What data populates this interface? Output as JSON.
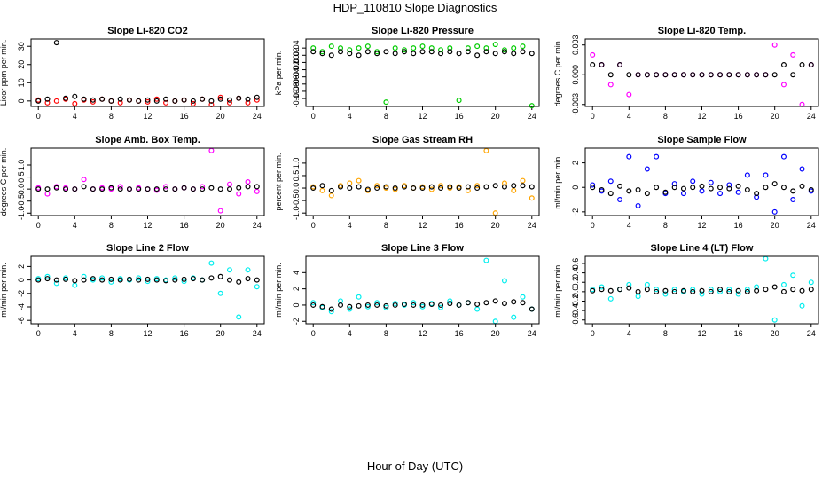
{
  "title": "HDP_110810  Slope Diagnostics",
  "xlabel": "Hour of Day (UTC)",
  "chart_data": [
    {
      "type": "scatter",
      "title": "Slope Li-820 CO2",
      "ylabel": "Licor ppm per min.",
      "xlim": [
        -0.8,
        24.8
      ],
      "xticks": [
        0,
        4,
        8,
        12,
        16,
        20,
        24
      ],
      "ylim": [
        -3,
        34
      ],
      "yticks": [
        0,
        10,
        20,
        30
      ],
      "x": [
        0,
        1,
        2,
        3,
        4,
        5,
        6,
        7,
        8,
        9,
        10,
        11,
        12,
        13,
        14,
        15,
        16,
        17,
        18,
        19,
        20,
        21,
        22,
        23,
        24
      ],
      "series": [
        {
          "color": "#ff0000",
          "values": [
            0.5,
            -1,
            0,
            1,
            -1.5,
            0.5,
            -0.5,
            1,
            0,
            -1,
            0.5,
            0,
            -0.5,
            1,
            -1,
            0,
            0.5,
            -1.5,
            1,
            -2,
            2,
            -1,
            1.5,
            -1,
            0.5
          ]
        },
        {
          "color": "#000000",
          "values": [
            0,
            1,
            32,
            1.5,
            2.5,
            1,
            0.5,
            1,
            0,
            1,
            0.5,
            0,
            0.5,
            0,
            1,
            0,
            0.5,
            0,
            1,
            0,
            1,
            0.5,
            1.5,
            1,
            2
          ]
        }
      ]
    },
    {
      "type": "scatter",
      "title": "Slope Li-820 Pressure",
      "ylabel": "kPa per min.",
      "xlim": [
        -0.8,
        24.8
      ],
      "xticks": [
        0,
        4,
        8,
        12,
        16,
        20,
        24
      ],
      "ylim": [
        -0.122,
        0.065
      ],
      "yticks": [
        {
          "value": -0.1,
          "label": "-0.10"
        },
        {
          "value": -0.08,
          "label": "-0.08"
        },
        {
          "value": -0.06,
          "label": "-0.06"
        },
        {
          "value": -0.04,
          "label": "-0.04"
        },
        {
          "value": -0.02,
          "label": "-0.02"
        },
        {
          "value": 0,
          "label": "0.00"
        },
        {
          "value": 0.02,
          "label": "0.02"
        },
        {
          "value": 0.04,
          "label": "0.04"
        }
      ],
      "x": [
        0,
        1,
        2,
        3,
        4,
        5,
        6,
        7,
        8,
        9,
        10,
        11,
        12,
        13,
        14,
        15,
        16,
        17,
        18,
        19,
        20,
        21,
        22,
        23,
        24
      ],
      "series": [
        {
          "color": "#00cc00",
          "values": [
            0.04,
            0.03,
            0.045,
            0.04,
            0.035,
            0.04,
            0.045,
            0.03,
            -0.11,
            0.04,
            0.035,
            0.04,
            0.045,
            0.04,
            0.035,
            0.04,
            -0.105,
            0.04,
            0.045,
            0.04,
            0.05,
            0.035,
            0.04,
            0.045,
            -0.12
          ]
        },
        {
          "color": "#000000",
          "values": [
            0.03,
            0.025,
            0.02,
            0.03,
            0.025,
            0.02,
            0.03,
            0.025,
            0.03,
            0.025,
            0.03,
            0.025,
            0.03,
            0.03,
            0.025,
            0.03,
            0.025,
            0.03,
            0.02,
            0.03,
            0.025,
            0.03,
            0.025,
            0.03,
            0.025
          ]
        }
      ]
    },
    {
      "type": "scatter",
      "title": "Slope Li-820 Temp.",
      "ylabel": "degrees C per min.",
      "xlim": [
        -0.8,
        24.8
      ],
      "xticks": [
        0,
        4,
        8,
        12,
        16,
        20,
        24
      ],
      "ylim": [
        -0.0032,
        0.0036
      ],
      "yticks": [
        {
          "value": -0.003,
          "label": "-0.003"
        },
        {
          "value": 0,
          "label": "0.000"
        },
        {
          "value": 0.003,
          "label": "0.003"
        }
      ],
      "x": [
        0,
        1,
        2,
        3,
        4,
        5,
        6,
        7,
        8,
        9,
        10,
        11,
        12,
        13,
        14,
        15,
        16,
        17,
        18,
        19,
        20,
        21,
        22,
        23,
        24
      ],
      "series": [
        {
          "color": "#ff00ff",
          "values": [
            0.002,
            0.001,
            -0.001,
            0.001,
            -0.002,
            0,
            0,
            0,
            0,
            0,
            0,
            0,
            0,
            0,
            0,
            0,
            0,
            0,
            0,
            0,
            0.003,
            -0.001,
            0.002,
            -0.003,
            0.001
          ]
        },
        {
          "color": "#000000",
          "values": [
            0.001,
            0.001,
            0,
            0.001,
            0,
            0,
            0,
            0,
            0,
            0,
            0,
            0,
            0,
            0,
            0,
            0,
            0,
            0,
            0,
            0,
            0,
            0.001,
            0,
            0.001,
            0.001
          ]
        }
      ]
    },
    {
      "type": "scatter",
      "title": "Slope Amb. Box Temp.",
      "ylabel": "degrees C per min.",
      "xlim": [
        -0.8,
        24.8
      ],
      "xticks": [
        0,
        4,
        8,
        12,
        16,
        20,
        24
      ],
      "ylim": [
        -1.1,
        1.7
      ],
      "yticks": [
        {
          "value": -1,
          "label": "-1.0"
        },
        {
          "value": -0.5,
          "label": "-0.5"
        },
        {
          "value": 0,
          "label": "0.0"
        },
        {
          "value": 0.5,
          "label": "0.5"
        },
        {
          "value": 1,
          "label": "1.0"
        }
      ],
      "x": [
        0,
        1,
        2,
        3,
        4,
        5,
        6,
        7,
        8,
        9,
        10,
        11,
        12,
        13,
        14,
        15,
        16,
        17,
        18,
        19,
        20,
        21,
        22,
        23,
        24
      ],
      "series": [
        {
          "color": "#ff00ff",
          "values": [
            0.05,
            -0.2,
            0.1,
            0.05,
            0,
            0.4,
            0,
            0.05,
            0,
            0.1,
            0,
            0.05,
            0,
            -0.05,
            0.1,
            0,
            0.05,
            0,
            0.1,
            1.6,
            -0.9,
            0.2,
            -0.2,
            0.3,
            -0.1
          ]
        },
        {
          "color": "#000000",
          "values": [
            0,
            0,
            0.05,
            0,
            0,
            0.1,
            0,
            0,
            0.05,
            0,
            0,
            0,
            0,
            0,
            0,
            0,
            0.05,
            0,
            0,
            0.05,
            0,
            0,
            0.05,
            0.1,
            0.1
          ]
        }
      ]
    },
    {
      "type": "scatter",
      "title": "Slope Gas Stream RH",
      "ylabel": "percent per min.",
      "xlim": [
        -0.8,
        24.8
      ],
      "xticks": [
        0,
        4,
        8,
        12,
        16,
        20,
        24
      ],
      "ylim": [
        -1.1,
        1.6
      ],
      "yticks": [
        {
          "value": -1,
          "label": "-1.0"
        },
        {
          "value": -0.5,
          "label": "-0.5"
        },
        {
          "value": 0,
          "label": "0.0"
        },
        {
          "value": 0.5,
          "label": "0.5"
        },
        {
          "value": 1,
          "label": "1.0"
        }
      ],
      "x": [
        0,
        1,
        2,
        3,
        4,
        5,
        6,
        7,
        8,
        9,
        10,
        11,
        12,
        13,
        14,
        15,
        16,
        17,
        18,
        19,
        20,
        21,
        22,
        23,
        24
      ],
      "series": [
        {
          "color": "#ffa500",
          "values": [
            0.05,
            -0.1,
            -0.3,
            0.1,
            0.2,
            0.3,
            -0.1,
            0.1,
            0,
            -0.05,
            0.1,
            0,
            0.05,
            -0.05,
            0.1,
            0,
            0.05,
            -0.1,
            0.1,
            1.5,
            -1,
            0.2,
            -0.1,
            0.3,
            -0.4
          ]
        },
        {
          "color": "#000000",
          "values": [
            0,
            0.1,
            -0.1,
            0.05,
            0,
            0.05,
            -0.05,
            0,
            0.05,
            0,
            0.05,
            0,
            0,
            0.05,
            0,
            0.05,
            0,
            0.05,
            0,
            0.05,
            0.1,
            0.05,
            0.1,
            0.1,
            0.05
          ]
        }
      ]
    },
    {
      "type": "scatter",
      "title": "Slope Sample Flow",
      "ylabel": "ml/min per min.",
      "xlim": [
        -0.8,
        24.8
      ],
      "xticks": [
        0,
        4,
        8,
        12,
        16,
        20,
        24
      ],
      "ylim": [
        -2.3,
        3.2
      ],
      "yticks": [
        -2,
        0,
        2
      ],
      "x": [
        0,
        1,
        2,
        3,
        4,
        5,
        6,
        7,
        8,
        9,
        10,
        11,
        12,
        13,
        14,
        15,
        16,
        17,
        18,
        19,
        20,
        21,
        22,
        23,
        24
      ],
      "series": [
        {
          "color": "#0000ff",
          "values": [
            0.2,
            -0.3,
            0.5,
            -1,
            2.5,
            -1.5,
            1.5,
            2.5,
            -0.5,
            0.3,
            -0.5,
            0.5,
            -0.3,
            0.4,
            -0.5,
            0.2,
            -0.4,
            1,
            -0.8,
            1,
            -2,
            2.5,
            -1,
            1.5,
            -0.3
          ]
        },
        {
          "color": "#000000",
          "values": [
            0,
            -0.2,
            -0.5,
            0.1,
            -0.3,
            -0.2,
            -0.5,
            0,
            -0.4,
            0,
            -0.1,
            0,
            0.1,
            -0.1,
            0,
            -0.1,
            0.1,
            -0.2,
            -0.5,
            0,
            0.3,
            0,
            -0.3,
            0.1,
            -0.2
          ]
        }
      ]
    },
    {
      "type": "scatter",
      "title": "Slope Line 2 Flow",
      "ylabel": "ml/min per min.",
      "xlim": [
        -0.8,
        24.8
      ],
      "xticks": [
        0,
        4,
        8,
        12,
        16,
        20,
        24
      ],
      "ylim": [
        -6.5,
        3.5
      ],
      "yticks": [
        -6,
        -4,
        -2,
        0,
        2
      ],
      "x": [
        0,
        1,
        2,
        3,
        4,
        5,
        6,
        7,
        8,
        9,
        10,
        11,
        12,
        13,
        14,
        15,
        16,
        17,
        18,
        19,
        20,
        21,
        22,
        23,
        24
      ],
      "series": [
        {
          "color": "#00eeee",
          "values": [
            0.2,
            0.5,
            -0.5,
            0.3,
            -0.8,
            0.5,
            0,
            0.3,
            -0.3,
            0.2,
            0,
            0.3,
            -0.2,
            0.2,
            0,
            0.3,
            -0.2,
            0.3,
            0,
            2.5,
            -2,
            1.5,
            -5.5,
            1.5,
            -1
          ]
        },
        {
          "color": "#000000",
          "values": [
            0,
            0.2,
            0,
            0.1,
            -0.1,
            0,
            0.2,
            0,
            0.1,
            0,
            0.1,
            0,
            0.1,
            0,
            -0.1,
            0,
            0.1,
            0.2,
            0,
            0.3,
            0.5,
            0,
            -0.3,
            0.2,
            0
          ]
        }
      ]
    },
    {
      "type": "scatter",
      "title": "Slope Line 3 Flow",
      "ylabel": "ml/min per min.",
      "xlim": [
        -0.8,
        24.8
      ],
      "xticks": [
        0,
        4,
        8,
        12,
        16,
        20,
        24
      ],
      "ylim": [
        -2.3,
        6
      ],
      "yticks": [
        -2,
        0,
        2,
        4
      ],
      "x": [
        0,
        1,
        2,
        3,
        4,
        5,
        6,
        7,
        8,
        9,
        10,
        11,
        12,
        13,
        14,
        15,
        16,
        17,
        18,
        19,
        20,
        21,
        22,
        23,
        24
      ],
      "series": [
        {
          "color": "#00eeee",
          "values": [
            0.3,
            -0.3,
            -0.8,
            0.5,
            -0.5,
            1,
            -0.2,
            0.3,
            -0.3,
            0.2,
            0,
            0.3,
            -0.2,
            0.2,
            -0.3,
            0.5,
            0,
            0.3,
            -0.5,
            5.5,
            -2,
            3,
            -1.5,
            1,
            -0.5
          ]
        },
        {
          "color": "#000000",
          "values": [
            0,
            -0.2,
            -0.5,
            0,
            -0.2,
            -0.1,
            0,
            0,
            -0.1,
            0,
            0.1,
            0,
            0,
            0.1,
            0,
            0.2,
            0,
            0.3,
            0.1,
            0.3,
            0.5,
            0.2,
            0.4,
            0.3,
            -0.5
          ]
        }
      ]
    },
    {
      "type": "scatter",
      "title": "Slope Line 4 (LT) Flow",
      "ylabel": "ml/min per min.",
      "xlim": [
        -0.8,
        24.8
      ],
      "xticks": [
        0,
        4,
        8,
        12,
        16,
        20,
        24
      ],
      "ylim": [
        -0.68,
        0.75
      ],
      "yticks": [
        {
          "value": -0.6,
          "label": "-0.6"
        },
        {
          "value": -0.4,
          "label": "-0.4"
        },
        {
          "value": -0.2,
          "label": "-0.2"
        },
        {
          "value": 0,
          "label": "0.0"
        },
        {
          "value": 0.2,
          "label": "0.2"
        },
        {
          "value": 0.4,
          "label": "0.4"
        },
        {
          "value": 0.6,
          "label": "0.6"
        }
      ],
      "x": [
        0,
        1,
        2,
        3,
        4,
        5,
        6,
        7,
        8,
        9,
        10,
        11,
        12,
        13,
        14,
        15,
        16,
        17,
        18,
        19,
        20,
        21,
        22,
        23,
        24
      ],
      "series": [
        {
          "color": "#00eeee",
          "values": [
            0.05,
            0.1,
            -0.15,
            0.05,
            0.15,
            -0.1,
            0.15,
            0.05,
            -0.05,
            0.05,
            0,
            0.05,
            -0.05,
            0.05,
            0,
            0.05,
            -0.05,
            0.05,
            0.1,
            0.7,
            -0.6,
            0.15,
            0.35,
            -0.3,
            0.2
          ]
        },
        {
          "color": "#000000",
          "values": [
            0.02,
            0.05,
            0.02,
            0.05,
            0.08,
            0,
            0.05,
            0,
            0.02,
            0,
            0.02,
            0,
            0.02,
            0,
            0.05,
            0,
            0.02,
            0,
            0.02,
            0.05,
            0.1,
            0,
            0.05,
            0.02,
            0.05
          ]
        }
      ]
    }
  ]
}
